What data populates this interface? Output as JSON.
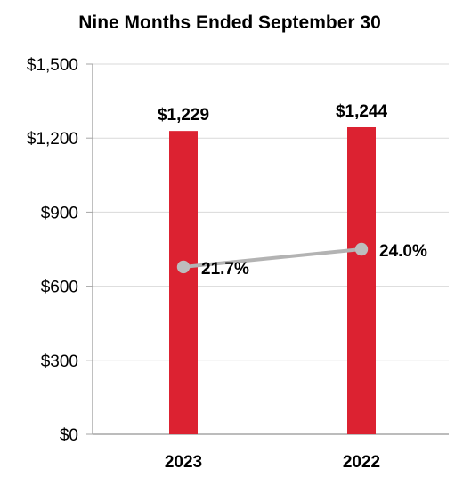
{
  "chart_data": {
    "type": "bar",
    "title": "Nine Months Ended September 30",
    "categories": [
      "2023",
      "2022"
    ],
    "series": [
      {
        "type": "bar",
        "values": [
          1229,
          1244
        ],
        "value_labels": [
          "$1,229",
          "$1,244"
        ],
        "color": "#dc2231"
      },
      {
        "type": "line",
        "values": [
          21.7,
          24.0
        ],
        "value_labels": [
          "21.7%",
          "24.0%"
        ],
        "line_color": "#b3b3b3",
        "marker_color": "#bdbdbd"
      }
    ],
    "y_axis": {
      "min": 0,
      "max": 1500,
      "ticks": [
        0,
        300,
        600,
        900,
        1200,
        1500
      ],
      "tick_labels": [
        "$0",
        "$300",
        "$600",
        "$900",
        "$1,200",
        "$1,500"
      ]
    },
    "secondary_axis_note": "",
    "grid": true,
    "legend": "none",
    "colors": {
      "title": "#000000",
      "grid": "#d9d9d9",
      "axis": "#a6a6a6",
      "text": "#000000"
    }
  }
}
